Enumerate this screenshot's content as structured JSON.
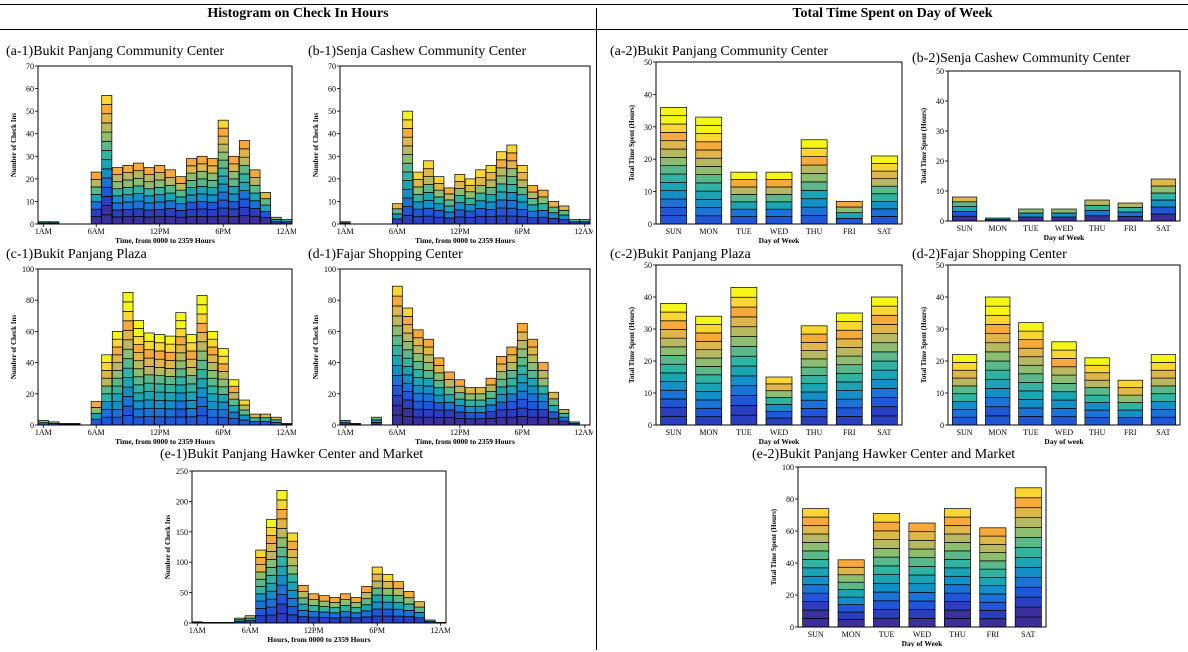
{
  "headers": {
    "left": "Histogram on Check In Hours",
    "right": "Total Time Spent on Day of Week"
  },
  "colors": [
    "#3b2f9c",
    "#2a3fbf",
    "#1f57d6",
    "#1b73d8",
    "#1490c8",
    "#1aa5b5",
    "#30b3a0",
    "#5bb88a",
    "#8cbd70",
    "#b7b860",
    "#dfb64a",
    "#f7a93c",
    "#f9d632",
    "#f5f516"
  ],
  "chart_data": [
    {
      "id": "a1",
      "type": "bar",
      "title": "(a-1)Bukit Panjang Community Center",
      "xlabel": "Time, from 0000 to 2359 Hours",
      "ylabel": "Number of Check Ins",
      "ylim": [
        0,
        70
      ],
      "yticks": [
        0,
        10,
        20,
        30,
        40,
        50,
        60,
        70
      ],
      "xticks": [
        "1AM",
        "6AM",
        "12PM",
        "6PM",
        "12AM"
      ],
      "xtick_index": [
        0,
        5,
        11,
        17,
        23
      ],
      "values": [
        1,
        1,
        0,
        0,
        0,
        23,
        57,
        25,
        26,
        27,
        25,
        26,
        24,
        21,
        29,
        30,
        29,
        46,
        30,
        37,
        24,
        14,
        3,
        2
      ]
    },
    {
      "id": "b1",
      "type": "bar",
      "title": "(b-1)Senja Cashew Community Center",
      "xlabel": "Time, from 0000 to 2359 Hours",
      "ylabel": "Number of Check Ins",
      "ylim": [
        0,
        70
      ],
      "yticks": [
        0,
        10,
        20,
        30,
        40,
        50,
        60,
        70
      ],
      "xticks": [
        "1AM",
        "6AM",
        "12PM",
        "6PM",
        "12AM"
      ],
      "xtick_index": [
        0,
        5,
        11,
        17,
        23
      ],
      "values": [
        1,
        0,
        0,
        0,
        0,
        9,
        50,
        23,
        28,
        21,
        16,
        22,
        20,
        24,
        26,
        32,
        35,
        26,
        17,
        15,
        10,
        8,
        2,
        2
      ]
    },
    {
      "id": "c1",
      "type": "bar",
      "title": "(c-1)Bukit Panjang Plaza",
      "xlabel": "Time, from 0000 to 2359 Hours",
      "ylabel": "Number of Check Ins",
      "ylim": [
        0,
        100
      ],
      "yticks": [
        0,
        20,
        40,
        60,
        80,
        100
      ],
      "xticks": [
        "1AM",
        "6AM",
        "12PM",
        "6PM",
        "12AM"
      ],
      "xtick_index": [
        0,
        5,
        11,
        17,
        23
      ],
      "values": [
        3,
        2,
        1,
        1,
        0,
        15,
        45,
        60,
        85,
        67,
        59,
        58,
        57,
        72,
        58,
        83,
        60,
        49,
        29,
        16,
        7,
        7,
        5,
        1
      ]
    },
    {
      "id": "d1",
      "type": "bar",
      "title": "(d-1)Fajar Shopping Center",
      "xlabel": "Time, from 0000 to 2359 Hours",
      "ylabel": "Number of Check Ins",
      "ylim": [
        0,
        100
      ],
      "yticks": [
        0,
        20,
        40,
        60,
        80,
        100
      ],
      "xticks": [
        "1AM",
        "6AM",
        "12PM",
        "6PM",
        "12AM"
      ],
      "xtick_index": [
        0,
        5,
        11,
        17,
        23
      ],
      "values": [
        3,
        1,
        0,
        5,
        0,
        89,
        75,
        61,
        55,
        43,
        34,
        29,
        24,
        24,
        30,
        44,
        50,
        65,
        55,
        40,
        21,
        10,
        2,
        0
      ]
    },
    {
      "id": "e1",
      "type": "bar",
      "title": "(e-1)Bukit Panjang Hawker Center and Market",
      "xlabel": "Hours, from 0000 to 2359 Hours",
      "ylabel": "Number of Check Ins",
      "ylim": [
        0,
        250
      ],
      "yticks": [
        0,
        50,
        100,
        150,
        200,
        250
      ],
      "xticks": [
        "1AM",
        "6AM",
        "12PM",
        "6PM",
        "12AM"
      ],
      "xtick_index": [
        0,
        5,
        11,
        17,
        23
      ],
      "values": [
        2,
        1,
        1,
        1,
        8,
        12,
        120,
        170,
        218,
        148,
        62,
        48,
        45,
        42,
        48,
        42,
        60,
        92,
        80,
        68,
        52,
        35,
        5,
        1
      ]
    },
    {
      "id": "a2",
      "type": "bar",
      "title": "(a-2)Bukit Panjang Community Center",
      "xlabel": "Day of Week",
      "ylabel": "Total Time Spent (Hours)",
      "ylim": [
        0,
        50
      ],
      "yticks": [
        0,
        10,
        20,
        30,
        40,
        50
      ],
      "categories": [
        "SUN",
        "MON",
        "TUE",
        "WED",
        "THU",
        "FRI",
        "SAT"
      ],
      "values": [
        36,
        33,
        16,
        16,
        26,
        7,
        21
      ]
    },
    {
      "id": "b2",
      "type": "bar",
      "title": "(b-2)Senja Cashew Community Center",
      "xlabel": "Day of Week",
      "ylabel": "Total Time Spent (Hours)",
      "ylim": [
        0,
        50
      ],
      "yticks": [
        0,
        10,
        20,
        30,
        40,
        50
      ],
      "categories": [
        "SUN",
        "MON",
        "TUE",
        "WED",
        "THU",
        "FRI",
        "SAT"
      ],
      "values": [
        8,
        1,
        4,
        4,
        7,
        6,
        14
      ]
    },
    {
      "id": "c2",
      "type": "bar",
      "title": "(c-2)Bukit Panjang Plaza",
      "xlabel": "Day of Week",
      "ylabel": "Total Time Spent (Hours)",
      "ylim": [
        0,
        50
      ],
      "yticks": [
        0,
        10,
        20,
        30,
        40,
        50
      ],
      "categories": [
        "SUN",
        "MON",
        "TUE",
        "WED",
        "THU",
        "FRI",
        "SAT"
      ],
      "values": [
        38,
        34,
        43,
        15,
        31,
        35,
        40
      ]
    },
    {
      "id": "d2",
      "type": "bar",
      "title": "(d-2)Fajar Shopping Center",
      "xlabel": "Day of week",
      "ylabel": "Total Time Spent (Hours)",
      "ylim": [
        0,
        50
      ],
      "yticks": [
        0,
        10,
        20,
        30,
        40,
        50
      ],
      "categories": [
        "SUN",
        "MON",
        "TUE",
        "WED",
        "THU",
        "FRI",
        "SAT"
      ],
      "values": [
        22,
        40,
        32,
        26,
        21,
        14,
        22
      ]
    },
    {
      "id": "e2",
      "type": "bar",
      "title": "(e-2)Bukit Panjang Hawker Center and Market",
      "xlabel": "Day of Week",
      "ylabel": "Total Time Spent (Hours)",
      "ylim": [
        0,
        100
      ],
      "yticks": [
        0,
        20,
        40,
        60,
        80,
        100
      ],
      "categories": [
        "SUN",
        "MON",
        "TUE",
        "WED",
        "THU",
        "FRI",
        "SAT"
      ],
      "values": [
        74,
        42,
        71,
        65,
        74,
        62,
        87
      ]
    }
  ]
}
